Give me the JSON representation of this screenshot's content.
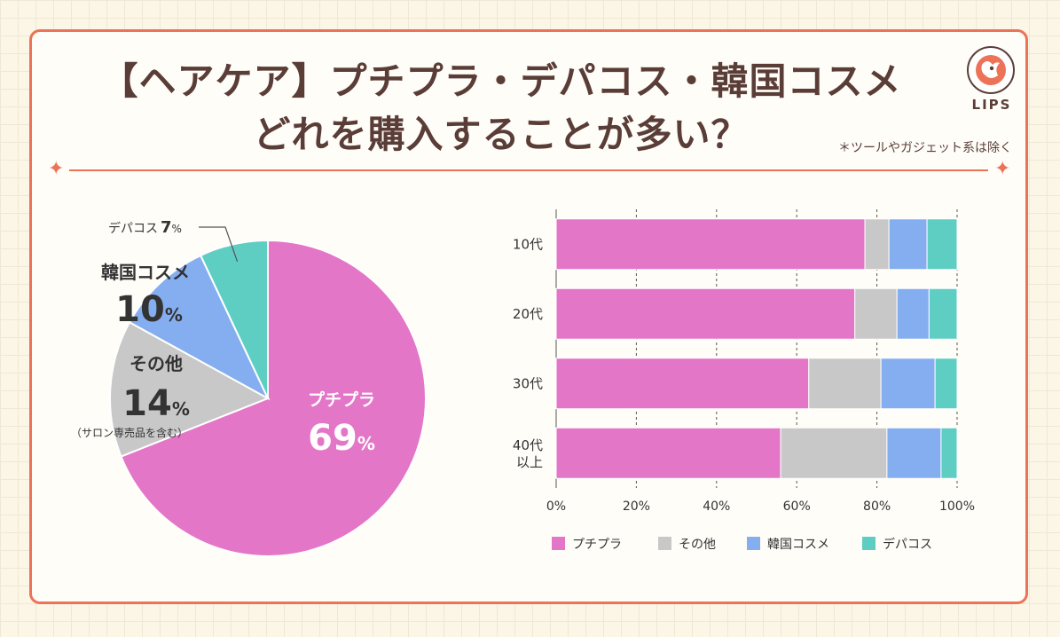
{
  "title_line1": "【ヘアケア】プチプラ・デパコス・韓国コスメ",
  "title_line2": "どれを購入することが多い？",
  "note": "＊ツールやガジェット系は除く",
  "logo": "LIPS",
  "chart_data": [
    {
      "type": "pie",
      "slices": [
        {
          "label": "プチプラ",
          "value": 69,
          "color": "#e476c8"
        },
        {
          "label": "その他",
          "sublabel": "（サロン専売品を含む）",
          "value": 14,
          "color": "#c8c8c8"
        },
        {
          "label": "韓国コスメ",
          "value": 10,
          "color": "#85aef0"
        },
        {
          "label": "デパコス",
          "value": 7,
          "color": "#5ecdc2"
        }
      ],
      "value_suffix": "%"
    },
    {
      "type": "bar",
      "orientation": "horizontal",
      "stacked": true,
      "categories": [
        "10代",
        "20代",
        "30代",
        "40代\n以上"
      ],
      "series": [
        {
          "name": "プチプラ",
          "color": "#e476c8",
          "values": [
            77,
            74.5,
            63,
            56
          ]
        },
        {
          "name": "その他",
          "color": "#c8c8c8",
          "values": [
            6,
            10.5,
            18,
            26.5
          ]
        },
        {
          "name": "韓国コスメ",
          "color": "#85aef0",
          "values": [
            9.5,
            8,
            13.5,
            13.5
          ]
        },
        {
          "name": "デパコス",
          "color": "#5ecdc2",
          "values": [
            7.5,
            7,
            5.5,
            4
          ]
        }
      ],
      "xlim": [
        0,
        100
      ],
      "xticks": [
        "0%",
        "20%",
        "40%",
        "60%",
        "80%",
        "100%"
      ],
      "grid": true,
      "legend": "bottom"
    }
  ]
}
